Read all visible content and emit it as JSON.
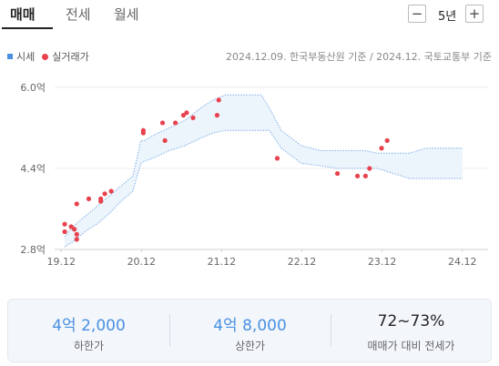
{
  "tabs": [
    {
      "label": "매매",
      "active": true
    },
    {
      "label": "전세",
      "active": false
    },
    {
      "label": "월세",
      "active": false
    }
  ],
  "period": {
    "minus": "−",
    "label": "5년",
    "plus": "+"
  },
  "legend": {
    "market_price": "시세",
    "actual_trade": "실거래가"
  },
  "source_note": "2024.12.09. 한국부동산원 기준 / 2024.12. 국토교통부 기준",
  "colors": {
    "accent": "#4a90e2",
    "trade_dot": "#e8414e",
    "band_fill": "#ecf4fc",
    "band_stroke": "#7fb0e6"
  },
  "chart_data": {
    "type": "scatter",
    "title": "",
    "xlabel": "",
    "ylabel": "",
    "x_ticks": [
      "19.12",
      "20.12",
      "21.12",
      "22.12",
      "23.12",
      "24.12"
    ],
    "y_ticks": [
      "2.8억",
      "4.4억",
      "6.0억"
    ],
    "ylim": [
      2.8,
      6.0
    ],
    "xlim": [
      2019.92,
      2024.96
    ],
    "grid": true,
    "legend_position": "top-left",
    "series": [
      {
        "name": "시세",
        "kind": "band",
        "x": [
          2020.0,
          2020.1,
          2020.25,
          2020.4,
          2020.55,
          2020.7,
          2020.85,
          2020.95,
          2021.0,
          2021.1,
          2021.3,
          2021.5,
          2021.7,
          2021.85,
          2022.0,
          2022.3,
          2022.45,
          2022.55,
          2022.7,
          2022.95,
          2023.2,
          2023.4,
          2023.6,
          2023.75,
          2023.9,
          2024.1,
          2024.3,
          2024.5,
          2024.7,
          2024.96
        ],
        "lower": [
          2.85,
          2.95,
          3.15,
          3.3,
          3.5,
          3.75,
          3.95,
          4.5,
          4.55,
          4.6,
          4.75,
          4.85,
          5.0,
          5.1,
          5.15,
          5.15,
          5.15,
          5.15,
          4.8,
          4.5,
          4.45,
          4.4,
          4.4,
          4.4,
          4.4,
          4.3,
          4.2,
          4.2,
          4.2,
          4.2
        ],
        "upper": [
          3.05,
          3.25,
          3.45,
          3.65,
          3.85,
          4.05,
          4.25,
          4.95,
          4.95,
          5.05,
          5.2,
          5.35,
          5.6,
          5.75,
          5.85,
          5.85,
          5.85,
          5.6,
          5.15,
          4.85,
          4.75,
          4.75,
          4.75,
          4.75,
          4.7,
          4.7,
          4.7,
          4.8,
          4.8,
          4.8
        ]
      },
      {
        "name": "실거래가",
        "kind": "points",
        "x": [
          2020.0,
          2020.0,
          2020.08,
          2020.12,
          2020.15,
          2020.15,
          2020.15,
          2020.3,
          2020.45,
          2020.45,
          2020.5,
          2020.58,
          2020.98,
          2020.98,
          2021.22,
          2021.25,
          2021.38,
          2021.48,
          2021.52,
          2021.6,
          2021.9,
          2021.92,
          2022.65,
          2023.4,
          2023.65,
          2023.75,
          2023.8,
          2023.95,
          2024.02
        ],
        "y": [
          3.3,
          3.15,
          3.25,
          3.2,
          3.1,
          3.0,
          3.7,
          3.8,
          3.75,
          3.8,
          3.9,
          3.95,
          5.15,
          5.1,
          5.3,
          4.95,
          5.3,
          5.45,
          5.5,
          5.4,
          5.45,
          5.75,
          4.6,
          4.3,
          4.25,
          4.25,
          4.4,
          4.8,
          4.95
        ]
      }
    ]
  },
  "summary": [
    {
      "value": "4억 2,000",
      "label": "하한가"
    },
    {
      "value": "4억 8,000",
      "label": "상한가"
    },
    {
      "value": "72~73%",
      "label": "매매가 대비 전세가"
    }
  ]
}
